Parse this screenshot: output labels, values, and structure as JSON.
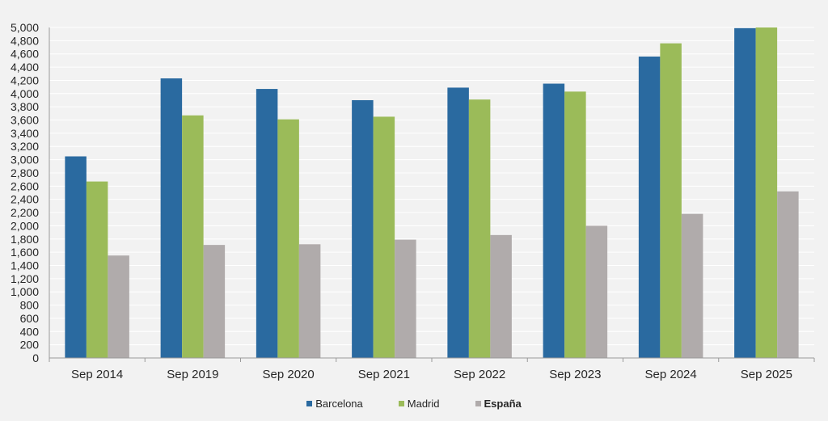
{
  "chart_data": {
    "type": "bar",
    "categories": [
      "Sep 2014",
      "Sep 2019",
      "Sep 2020",
      "Sep 2021",
      "Sep 2022",
      "Sep 2023",
      "Sep 2024",
      "Sep 2025"
    ],
    "series": [
      {
        "name": "Barcelona",
        "color": "#2a6aa0",
        "values": [
          3050,
          4230,
          4070,
          3900,
          4090,
          4150,
          4560,
          4990
        ]
      },
      {
        "name": "Madrid",
        "color": "#9bbb59",
        "values": [
          2670,
          3670,
          3610,
          3650,
          3910,
          4030,
          4760,
          5000
        ]
      },
      {
        "name": "España",
        "color": "#b0abab",
        "values": [
          1550,
          1710,
          1720,
          1790,
          1860,
          2000,
          2180,
          2520
        ]
      }
    ],
    "ylim": [
      0,
      5000
    ],
    "ytick_step": 200,
    "yticks": [
      "0",
      "200",
      "400",
      "600",
      "800",
      "1,000",
      "1,200",
      "1,400",
      "1,600",
      "1,800",
      "2,000",
      "2,200",
      "2,400",
      "2,600",
      "2,800",
      "3,000",
      "3,200",
      "3,400",
      "3,600",
      "3,800",
      "4,000",
      "4,200",
      "4,400",
      "4,600",
      "4,800",
      "5,000"
    ],
    "grid": true,
    "legend_position": "bottom-center",
    "title": "",
    "xlabel": "",
    "ylabel": ""
  },
  "legend": {
    "barcelona": "Barcelona",
    "madrid": "Madrid",
    "espana": "España"
  }
}
